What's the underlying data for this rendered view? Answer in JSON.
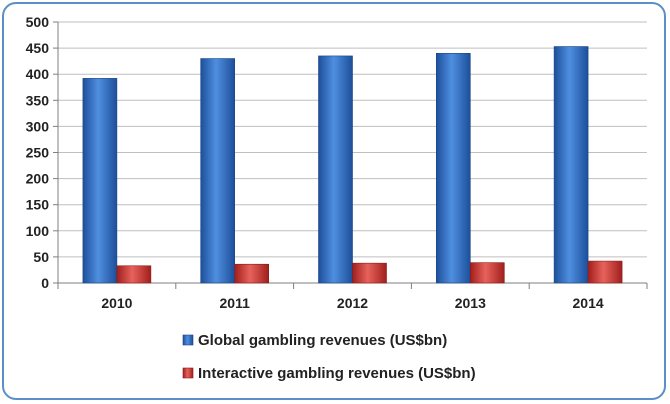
{
  "chart_data": {
    "type": "bar",
    "categories": [
      "2010",
      "2011",
      "2012",
      "2013",
      "2014"
    ],
    "series": [
      {
        "name": "Global gambling revenues (US$bn)",
        "values": [
          392,
          430,
          435,
          440,
          453
        ],
        "color": "#2f6fc4"
      },
      {
        "name": "Interactive gambling revenues (US$bn)",
        "values": [
          33,
          36,
          38,
          39,
          42
        ],
        "color": "#d33a35"
      }
    ],
    "title": "",
    "xlabel": "",
    "ylabel": "",
    "ylim": [
      0,
      500
    ],
    "yticks": [
      "0",
      "50",
      "100",
      "150",
      "200",
      "250",
      "300",
      "350",
      "400",
      "450",
      "500"
    ],
    "grid": true,
    "legend_position": "bottom"
  }
}
